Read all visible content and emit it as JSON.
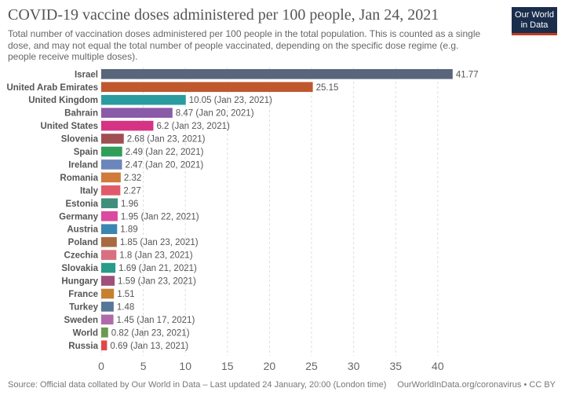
{
  "header": {
    "title": "COVID-19 vaccine doses administered per 100 people, Jan 24, 2021",
    "subtitle": "Total number of vaccination doses administered per 100 people in the total population. This is counted as a single dose, and may not equal the total number of people vaccinated, depending on the specific dose regime (e.g. people receive multiple doses).",
    "logo_line1": "Our World",
    "logo_line2": "in Data"
  },
  "footer": {
    "source": "Source: Official data collated by Our World in Data – Last updated 24 January, 20:00 (London time)",
    "credit": "OurWorldInData.org/coronavirus • CC BY"
  },
  "chart_data": {
    "type": "bar",
    "orientation": "horizontal",
    "xlim": [
      0,
      43
    ],
    "x_ticks": [
      0,
      5,
      10,
      15,
      20,
      25,
      30,
      35,
      40
    ],
    "grid": "vertical dashed",
    "categories": [
      "Israel",
      "United Arab Emirates",
      "United Kingdom",
      "Bahrain",
      "United States",
      "Slovenia",
      "Spain",
      "Ireland",
      "Romania",
      "Italy",
      "Estonia",
      "Germany",
      "Austria",
      "Poland",
      "Czechia",
      "Slovakia",
      "Hungary",
      "France",
      "Turkey",
      "Sweden",
      "World",
      "Russia"
    ],
    "values": [
      41.77,
      25.15,
      10.05,
      8.47,
      6.2,
      2.68,
      2.49,
      2.47,
      2.32,
      2.27,
      1.96,
      1.95,
      1.89,
      1.85,
      1.8,
      1.69,
      1.59,
      1.51,
      1.48,
      1.45,
      0.82,
      0.69
    ],
    "value_labels": [
      "41.77",
      "25.15",
      "10.05 (Jan 23, 2021)",
      "8.47 (Jan 20, 2021)",
      "6.2 (Jan 23, 2021)",
      "2.68 (Jan 23, 2021)",
      "2.49 (Jan 22, 2021)",
      "2.47 (Jan 20, 2021)",
      "2.32",
      "2.27",
      "1.96",
      "1.95 (Jan 22, 2021)",
      "1.89",
      "1.85 (Jan 23, 2021)",
      "1.8 (Jan 23, 2021)",
      "1.69 (Jan 21, 2021)",
      "1.59 (Jan 23, 2021)",
      "1.51",
      "1.48",
      "1.45 (Jan 17, 2021)",
      "0.82 (Jan 23, 2021)",
      "0.69 (Jan 13, 2021)"
    ],
    "colors": [
      "#58657a",
      "#c0582e",
      "#2a9ca0",
      "#8a5ba8",
      "#d63384",
      "#a04e52",
      "#2f9e5a",
      "#6a86ba",
      "#d07a3c",
      "#e05a6a",
      "#3f8f7c",
      "#d94aa0",
      "#3a86b0",
      "#a86a40",
      "#d97080",
      "#2a9a8a",
      "#a0507a",
      "#c78030",
      "#58759a",
      "#b06aaa",
      "#6a9a50",
      "#e04848"
    ]
  }
}
